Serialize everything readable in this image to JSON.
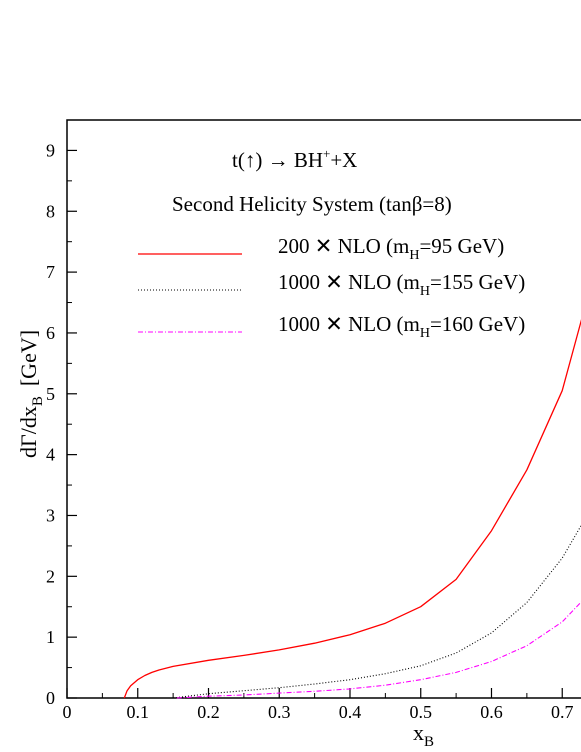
{
  "chart_data": {
    "type": "line",
    "title_process": {
      "pre": "t(",
      "arrow": "↑",
      "post": ") → BH",
      "sup": "+",
      "tail": "+X"
    },
    "subtitle": "Second Helicity System (tanβ=8)",
    "xlabel": {
      "main": "x",
      "sub": "B"
    },
    "ylabel": {
      "main": "dΓ/dx",
      "sub": "B",
      "unit": "[GeV]"
    },
    "xlim": [
      0,
      0.735
    ],
    "ylim": [
      0,
      9.5
    ],
    "x_ticks": [
      0,
      0.1,
      0.2,
      0.3,
      0.4,
      0.5,
      0.6,
      0.7
    ],
    "x_tick_labels": [
      "0",
      "0.1",
      "0.2",
      "0.3",
      "0.4",
      "0.5",
      "0.6",
      "0.7"
    ],
    "y_ticks": [
      0,
      1,
      2,
      3,
      4,
      5,
      6,
      7,
      8,
      9
    ],
    "y_tick_labels": [
      "0",
      "1",
      "2",
      "3",
      "4",
      "5",
      "6",
      "7",
      "8",
      "9"
    ],
    "grid": false,
    "legend_position": "top-right",
    "series": [
      {
        "legend": {
          "pre": "200 ✕ NLO (m",
          "sub": "H",
          "post": "=95 GeV)"
        },
        "color": "#ff0000",
        "dash": "solid",
        "points": [
          [
            0.081,
            0.0
          ],
          [
            0.085,
            0.12
          ],
          [
            0.09,
            0.2
          ],
          [
            0.1,
            0.3
          ],
          [
            0.11,
            0.37
          ],
          [
            0.12,
            0.42
          ],
          [
            0.13,
            0.46
          ],
          [
            0.15,
            0.52
          ],
          [
            0.2,
            0.62
          ],
          [
            0.25,
            0.7
          ],
          [
            0.3,
            0.79
          ],
          [
            0.35,
            0.9
          ],
          [
            0.4,
            1.04
          ],
          [
            0.45,
            1.23
          ],
          [
            0.5,
            1.5
          ],
          [
            0.55,
            1.95
          ],
          [
            0.6,
            2.75
          ],
          [
            0.65,
            3.75
          ],
          [
            0.7,
            5.05
          ],
          [
            0.735,
            6.55
          ]
        ]
      },
      {
        "legend": {
          "pre": "1000 ✕ NLO (m",
          "sub": "H",
          "post": "=155 GeV)"
        },
        "color": "#000000",
        "dash": "dotted",
        "points": [
          [
            0.15,
            0.0
          ],
          [
            0.2,
            0.07
          ],
          [
            0.25,
            0.12
          ],
          [
            0.3,
            0.17
          ],
          [
            0.35,
            0.23
          ],
          [
            0.4,
            0.3
          ],
          [
            0.45,
            0.4
          ],
          [
            0.5,
            0.53
          ],
          [
            0.55,
            0.74
          ],
          [
            0.6,
            1.07
          ],
          [
            0.65,
            1.57
          ],
          [
            0.7,
            2.3
          ],
          [
            0.735,
            3.0
          ]
        ]
      },
      {
        "legend": {
          "pre": "1000 ✕ NLO (m",
          "sub": "H",
          "post": "=160 GeV)"
        },
        "color": "#ff00ff",
        "dash": "dash-dot",
        "points": [
          [
            0.155,
            0.0
          ],
          [
            0.2,
            0.03
          ],
          [
            0.25,
            0.05
          ],
          [
            0.3,
            0.08
          ],
          [
            0.35,
            0.11
          ],
          [
            0.4,
            0.15
          ],
          [
            0.45,
            0.21
          ],
          [
            0.5,
            0.3
          ],
          [
            0.55,
            0.42
          ],
          [
            0.6,
            0.6
          ],
          [
            0.65,
            0.86
          ],
          [
            0.7,
            1.25
          ],
          [
            0.735,
            1.68
          ]
        ]
      }
    ]
  }
}
